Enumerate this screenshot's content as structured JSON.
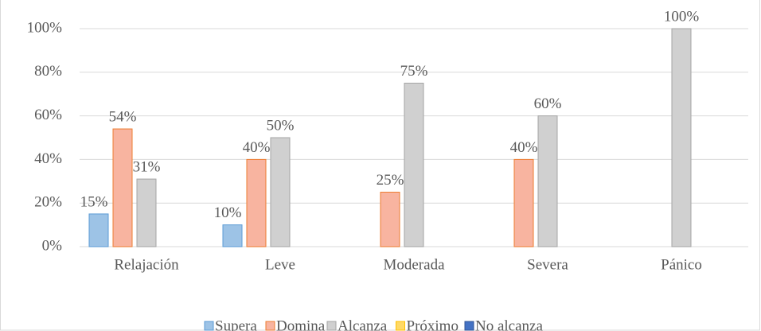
{
  "chart_data": {
    "type": "bar",
    "categories": [
      "Relajación",
      "Leve",
      "Moderada",
      "Severa",
      "Pánico"
    ],
    "series": [
      {
        "name": "Supera",
        "color": "#9dc3e6",
        "stroke": "#5b9bd5",
        "values": [
          15,
          10,
          null,
          null,
          null
        ],
        "value_labels": [
          "15%",
          "10%",
          null,
          null,
          null
        ]
      },
      {
        "name": "Domina",
        "color": "#f8b4a0",
        "stroke": "#ed7d31",
        "values": [
          54,
          40,
          25,
          40,
          null
        ],
        "value_labels": [
          "54%",
          "40%",
          "25%",
          "40%",
          null
        ]
      },
      {
        "name": "Alcanza",
        "color": "#d0d0d0",
        "stroke": "#a5a5a5",
        "values": [
          31,
          50,
          75,
          60,
          100
        ],
        "value_labels": [
          "31%",
          "50%",
          "75%",
          "60%",
          "100%"
        ]
      },
      {
        "name": "Próximo",
        "color": "#ffd966",
        "stroke": "#ffc000",
        "values": [
          null,
          null,
          null,
          null,
          null
        ],
        "value_labels": [
          null,
          null,
          null,
          null,
          null
        ]
      },
      {
        "name": "No alcanza",
        "color": "#4472c4",
        "stroke": "#2f5597",
        "values": [
          null,
          null,
          null,
          null,
          null
        ],
        "value_labels": [
          null,
          null,
          null,
          null,
          null
        ]
      }
    ],
    "ylim": [
      0,
      100
    ],
    "yticks": [
      {
        "value": 0,
        "label": "0%"
      },
      {
        "value": 20,
        "label": "20%"
      },
      {
        "value": 40,
        "label": "40%"
      },
      {
        "value": 60,
        "label": "60%"
      },
      {
        "value": 80,
        "label": "80%"
      },
      {
        "value": 100,
        "label": "100%"
      }
    ],
    "grid": true,
    "legend": "bottom"
  }
}
